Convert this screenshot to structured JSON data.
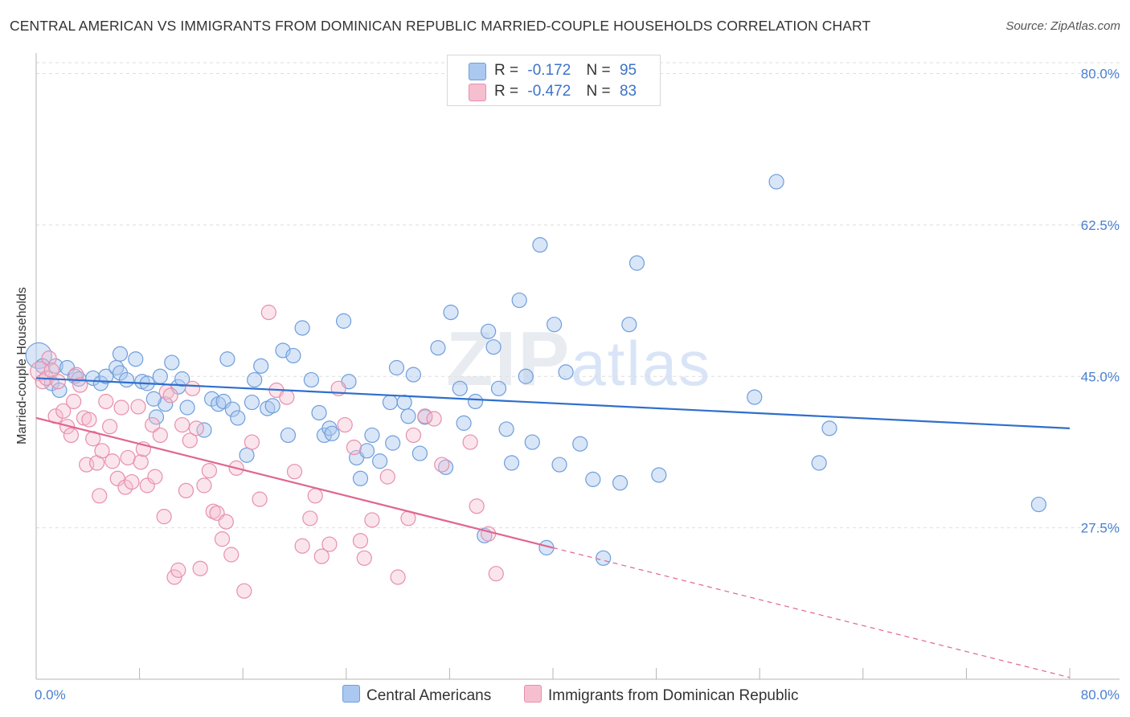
{
  "title": "CENTRAL AMERICAN VS IMMIGRANTS FROM DOMINICAN REPUBLIC MARRIED-COUPLE HOUSEHOLDS CORRELATION CHART",
  "source": "Source: ZipAtlas.com",
  "watermark": {
    "zip": "ZIP",
    "atlas": "atlas"
  },
  "legend": {
    "r_label": "R =",
    "n_label": "N =",
    "rows": [
      {
        "name": "Central Americans",
        "r": "-0.172",
        "n": "95"
      },
      {
        "name": "Immigrants from Dominican Republic",
        "r": "-0.472",
        "n": "83"
      }
    ]
  },
  "colors": {
    "blue_fill": "#aac8f0",
    "blue_stroke": "#6e9edb",
    "blue_line": "#2f6fcc",
    "pink_fill": "#f6bfd0",
    "pink_stroke": "#e78fab",
    "pink_line": "#e06690",
    "tick_text": "#4a7fd0",
    "grid": "#dedede"
  },
  "chart_data": {
    "type": "scatter",
    "title": "CENTRAL AMERICAN VS IMMIGRANTS FROM DOMINICAN REPUBLIC MARRIED-COUPLE HOUSEHOLDS CORRELATION CHART",
    "xlabel": "",
    "ylabel": "Married-couple Households",
    "xlim": [
      0,
      80
    ],
    "ylim": [
      10,
      82
    ],
    "x_tick_labels": [
      "0.0%",
      "80.0%"
    ],
    "y_ticks": [
      27.5,
      45.0,
      62.5,
      80.0
    ],
    "y_tick_labels": [
      "27.5%",
      "45.0%",
      "62.5%",
      "80.0%"
    ],
    "series": [
      {
        "name": "Central Americans",
        "trend": {
          "x": [
            0,
            80
          ],
          "y": [
            44.8,
            39.0
          ]
        },
        "points": [
          [
            0.2,
            47.4
          ],
          [
            0.5,
            46.2
          ],
          [
            1.2,
            44.2
          ],
          [
            1.5,
            46.2
          ],
          [
            2.4,
            46.0
          ],
          [
            3.0,
            45.0
          ],
          [
            4.4,
            44.8
          ],
          [
            5.0,
            44.2
          ],
          [
            5.4,
            45.0
          ],
          [
            6.2,
            46.0
          ],
          [
            6.5,
            45.4
          ],
          [
            7.0,
            44.6
          ],
          [
            7.7,
            47.0
          ],
          [
            8.2,
            44.4
          ],
          [
            8.6,
            44.2
          ],
          [
            9.3,
            40.3
          ],
          [
            9.6,
            45.0
          ],
          [
            10.0,
            41.8
          ],
          [
            10.5,
            46.6
          ],
          [
            11.0,
            43.8
          ],
          [
            11.3,
            44.7
          ],
          [
            11.7,
            41.4
          ],
          [
            13.0,
            38.8
          ],
          [
            13.6,
            42.4
          ],
          [
            14.1,
            41.8
          ],
          [
            14.5,
            42.1
          ],
          [
            15.2,
            41.2
          ],
          [
            15.6,
            40.2
          ],
          [
            16.3,
            35.9
          ],
          [
            16.7,
            42.0
          ],
          [
            16.9,
            44.6
          ],
          [
            17.4,
            46.2
          ],
          [
            17.9,
            41.3
          ],
          [
            18.3,
            41.6
          ],
          [
            19.1,
            48.0
          ],
          [
            19.5,
            38.2
          ],
          [
            19.9,
            47.4
          ],
          [
            20.6,
            50.6
          ],
          [
            21.3,
            44.6
          ],
          [
            21.9,
            40.8
          ],
          [
            22.3,
            38.2
          ],
          [
            22.7,
            39.0
          ],
          [
            22.9,
            38.4
          ],
          [
            23.8,
            51.4
          ],
          [
            24.2,
            44.4
          ],
          [
            24.8,
            35.6
          ],
          [
            25.1,
            33.2
          ],
          [
            25.6,
            36.4
          ],
          [
            26.0,
            38.2
          ],
          [
            26.6,
            35.2
          ],
          [
            27.4,
            42.0
          ],
          [
            27.9,
            46.0
          ],
          [
            28.5,
            42.0
          ],
          [
            28.8,
            40.4
          ],
          [
            29.2,
            45.2
          ],
          [
            29.7,
            36.1
          ],
          [
            30.1,
            40.3
          ],
          [
            31.1,
            48.3
          ],
          [
            31.7,
            34.5
          ],
          [
            32.1,
            52.4
          ],
          [
            32.8,
            43.6
          ],
          [
            33.1,
            39.6
          ],
          [
            34.0,
            42.1
          ],
          [
            34.7,
            26.6
          ],
          [
            35.0,
            50.2
          ],
          [
            35.4,
            48.4
          ],
          [
            35.8,
            43.6
          ],
          [
            36.4,
            38.9
          ],
          [
            36.8,
            35.0
          ],
          [
            37.4,
            53.8
          ],
          [
            37.9,
            45.0
          ],
          [
            38.4,
            37.4
          ],
          [
            39.0,
            60.2
          ],
          [
            39.5,
            25.2
          ],
          [
            40.1,
            51.0
          ],
          [
            40.5,
            34.8
          ],
          [
            41.0,
            45.5
          ],
          [
            42.1,
            37.2
          ],
          [
            43.1,
            33.1
          ],
          [
            43.9,
            24.0
          ],
          [
            45.2,
            32.7
          ],
          [
            45.9,
            51.0
          ],
          [
            46.5,
            58.1
          ],
          [
            48.2,
            33.6
          ],
          [
            55.6,
            42.6
          ],
          [
            57.3,
            67.5
          ],
          [
            60.6,
            35.0
          ],
          [
            61.4,
            39.0
          ],
          [
            77.6,
            30.2
          ],
          [
            6.5,
            47.6
          ],
          [
            9.1,
            42.4
          ],
          [
            3.3,
            44.7
          ],
          [
            14.8,
            47.0
          ],
          [
            27.6,
            37.3
          ],
          [
            1.8,
            43.4
          ]
        ]
      },
      {
        "name": "Immigrants from Dominican Republic",
        "trend": {
          "x": [
            0,
            40
          ],
          "y": [
            40.2,
            25.2
          ]
        },
        "trend_dashed": {
          "x": [
            40,
            80
          ],
          "y": [
            25.2,
            10.2
          ]
        },
        "points": [
          [
            0.3,
            45.6
          ],
          [
            0.5,
            44.4
          ],
          [
            0.8,
            44.8
          ],
          [
            1.0,
            47.1
          ],
          [
            1.2,
            45.7
          ],
          [
            1.5,
            40.4
          ],
          [
            1.7,
            44.4
          ],
          [
            2.1,
            41.0
          ],
          [
            2.4,
            39.2
          ],
          [
            2.7,
            38.2
          ],
          [
            2.9,
            42.1
          ],
          [
            3.1,
            45.2
          ],
          [
            3.4,
            44.0
          ],
          [
            3.7,
            40.2
          ],
          [
            3.9,
            34.8
          ],
          [
            4.1,
            40.0
          ],
          [
            4.4,
            37.8
          ],
          [
            4.7,
            35.0
          ],
          [
            4.9,
            31.2
          ],
          [
            5.1,
            36.4
          ],
          [
            5.4,
            42.1
          ],
          [
            5.7,
            39.2
          ],
          [
            5.9,
            35.2
          ],
          [
            6.3,
            33.2
          ],
          [
            6.6,
            41.4
          ],
          [
            6.9,
            32.2
          ],
          [
            7.1,
            35.6
          ],
          [
            7.4,
            32.8
          ],
          [
            7.9,
            41.5
          ],
          [
            8.1,
            35.1
          ],
          [
            8.3,
            36.6
          ],
          [
            8.6,
            32.4
          ],
          [
            9.0,
            39.4
          ],
          [
            9.2,
            33.4
          ],
          [
            9.6,
            38.2
          ],
          [
            9.9,
            28.8
          ],
          [
            10.1,
            43.2
          ],
          [
            10.4,
            42.8
          ],
          [
            10.7,
            21.8
          ],
          [
            11.0,
            22.6
          ],
          [
            11.3,
            39.4
          ],
          [
            11.6,
            31.8
          ],
          [
            11.9,
            37.6
          ],
          [
            12.1,
            43.6
          ],
          [
            12.4,
            39.0
          ],
          [
            12.7,
            22.8
          ],
          [
            13.0,
            32.4
          ],
          [
            13.4,
            34.1
          ],
          [
            13.7,
            29.4
          ],
          [
            14.0,
            29.2
          ],
          [
            14.4,
            26.2
          ],
          [
            14.7,
            28.2
          ],
          [
            15.1,
            24.4
          ],
          [
            15.5,
            34.4
          ],
          [
            16.1,
            20.2
          ],
          [
            16.7,
            37.4
          ],
          [
            17.3,
            30.8
          ],
          [
            18.0,
            52.4
          ],
          [
            18.6,
            43.4
          ],
          [
            19.4,
            42.6
          ],
          [
            20.0,
            34.0
          ],
          [
            20.6,
            25.4
          ],
          [
            21.2,
            28.6
          ],
          [
            21.6,
            31.2
          ],
          [
            22.1,
            24.2
          ],
          [
            22.7,
            25.6
          ],
          [
            23.4,
            43.6
          ],
          [
            23.9,
            39.4
          ],
          [
            24.6,
            36.8
          ],
          [
            25.1,
            26.0
          ],
          [
            25.4,
            24.0
          ],
          [
            26.0,
            28.4
          ],
          [
            27.2,
            33.4
          ],
          [
            28.0,
            21.8
          ],
          [
            28.8,
            28.6
          ],
          [
            29.2,
            38.2
          ],
          [
            30.1,
            40.4
          ],
          [
            30.8,
            40.1
          ],
          [
            31.4,
            34.8
          ],
          [
            33.6,
            37.4
          ],
          [
            34.1,
            30.0
          ],
          [
            35.0,
            26.8
          ],
          [
            35.6,
            22.2
          ]
        ]
      }
    ]
  }
}
